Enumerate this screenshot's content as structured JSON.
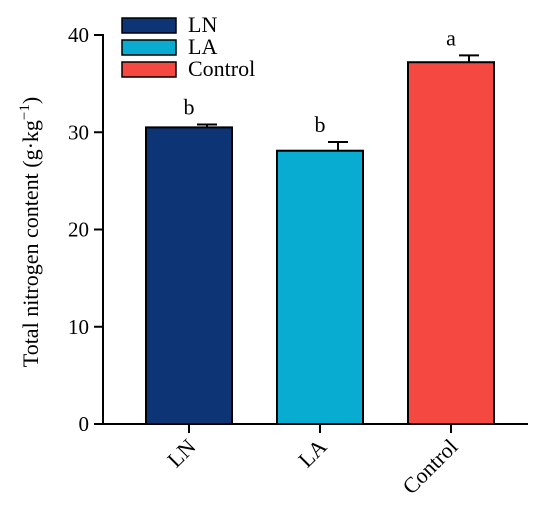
{
  "chart_data": {
    "type": "bar",
    "title": "",
    "xlabel": "",
    "ylabel": "Total nitrogen content (g·kg",
    "ylabel_sup": "−1",
    "ylabel_close": ")",
    "ylim": [
      0,
      40
    ],
    "yticks": [
      0,
      10,
      20,
      30,
      40
    ],
    "categories": [
      "LN",
      "LA",
      "Control"
    ],
    "values": [
      30.5,
      28.1,
      37.2
    ],
    "errors": [
      0.3,
      0.9,
      0.7
    ],
    "colors": [
      "#0d3575",
      "#08acd1",
      "#f44840"
    ],
    "significance_letters": [
      "b",
      "b",
      "a"
    ],
    "legend": {
      "placement": "top-left",
      "entries": [
        "LN",
        "LA",
        "Control"
      ]
    },
    "grid": false
  }
}
